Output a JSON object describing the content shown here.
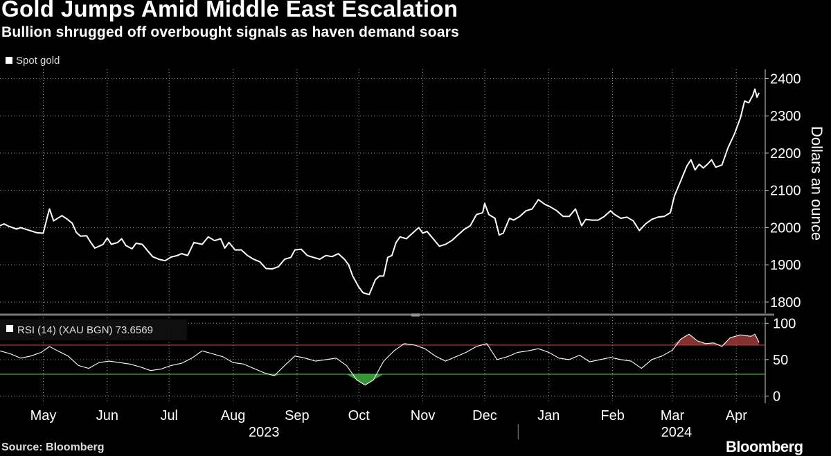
{
  "header": {
    "title": "Gold Jumps Amid Middle East Escalation",
    "subtitle": "Bullion shrugged off overbought signals as haven demand soars"
  },
  "footer": {
    "source": "Source: Bloomberg",
    "brand": "Bloomberg"
  },
  "colors": {
    "background": "#000000",
    "line": "#ffffff",
    "grid": "#9a9a9a",
    "overbought_line": "#c23b3b",
    "oversold_line": "#3fae3f",
    "overbought_fill": "#9b3a3a",
    "oversold_fill": "#3fae3f"
  },
  "chart_data": [
    {
      "type": "line",
      "title": "Gold Jumps Amid Middle East Escalation",
      "subtitle": "Bullion shrugged off overbought signals as haven demand soars",
      "legend": [
        "Spot gold"
      ],
      "legend_position": "top-left",
      "ylabel": "Dollars an ounce",
      "y_axis_side": "right",
      "yticks": [
        1800,
        1900,
        2000,
        2100,
        2200,
        2300,
        2400
      ],
      "ylim": [
        1770,
        2425
      ],
      "xlim": [
        "2023-04-10",
        "2024-04-15"
      ],
      "grid": "dotted",
      "series": [
        {
          "name": "Spot gold",
          "points": [
            [
              "2023-04-10",
              2005
            ],
            [
              "2023-04-12",
              2010
            ],
            [
              "2023-04-14",
              2004
            ],
            [
              "2023-04-18",
              1996
            ],
            [
              "2023-04-20",
              2000
            ],
            [
              "2023-04-25",
              1991
            ],
            [
              "2023-04-28",
              1986
            ],
            [
              "2023-05-01",
              1985
            ],
            [
              "2023-05-03",
              2030
            ],
            [
              "2023-05-04",
              2050
            ],
            [
              "2023-05-06",
              2018
            ],
            [
              "2023-05-10",
              2032
            ],
            [
              "2023-05-12",
              2025
            ],
            [
              "2023-05-15",
              2012
            ],
            [
              "2023-05-17",
              1987
            ],
            [
              "2023-05-19",
              1977
            ],
            [
              "2023-05-22",
              1978
            ],
            [
              "2023-05-24",
              1960
            ],
            [
              "2023-05-26",
              1945
            ],
            [
              "2023-05-30",
              1955
            ],
            [
              "2023-06-01",
              1972
            ],
            [
              "2023-06-03",
              1955
            ],
            [
              "2023-06-06",
              1960
            ],
            [
              "2023-06-08",
              1970
            ],
            [
              "2023-06-10",
              1952
            ],
            [
              "2023-06-13",
              1943
            ],
            [
              "2023-06-15",
              1958
            ],
            [
              "2023-06-18",
              1955
            ],
            [
              "2023-06-21",
              1935
            ],
            [
              "2023-06-23",
              1922
            ],
            [
              "2023-06-26",
              1915
            ],
            [
              "2023-06-29",
              1911
            ],
            [
              "2023-07-02",
              1921
            ],
            [
              "2023-07-05",
              1925
            ],
            [
              "2023-07-07",
              1930
            ],
            [
              "2023-07-10",
              1925
            ],
            [
              "2023-07-13",
              1960
            ],
            [
              "2023-07-17",
              1955
            ],
            [
              "2023-07-20",
              1975
            ],
            [
              "2023-07-23",
              1965
            ],
            [
              "2023-07-26",
              1970
            ],
            [
              "2023-07-28",
              1945
            ],
            [
              "2023-07-30",
              1960
            ],
            [
              "2023-08-02",
              1940
            ],
            [
              "2023-08-05",
              1940
            ],
            [
              "2023-08-08",
              1925
            ],
            [
              "2023-08-11",
              1915
            ],
            [
              "2023-08-14",
              1908
            ],
            [
              "2023-08-17",
              1890
            ],
            [
              "2023-08-20",
              1889
            ],
            [
              "2023-08-23",
              1895
            ],
            [
              "2023-08-26",
              1915
            ],
            [
              "2023-08-29",
              1920
            ],
            [
              "2023-08-31",
              1940
            ],
            [
              "2023-09-03",
              1942
            ],
            [
              "2023-09-06",
              1925
            ],
            [
              "2023-09-09",
              1920
            ],
            [
              "2023-09-12",
              1915
            ],
            [
              "2023-09-15",
              1925
            ],
            [
              "2023-09-18",
              1922
            ],
            [
              "2023-09-21",
              1930
            ],
            [
              "2023-09-24",
              1915
            ],
            [
              "2023-09-26",
              1900
            ],
            [
              "2023-09-28",
              1870
            ],
            [
              "2023-10-01",
              1840
            ],
            [
              "2023-10-03",
              1825
            ],
            [
              "2023-10-06",
              1820
            ],
            [
              "2023-10-09",
              1860
            ],
            [
              "2023-10-11",
              1870
            ],
            [
              "2023-10-13",
              1870
            ],
            [
              "2023-10-15",
              1920
            ],
            [
              "2023-10-17",
              1925
            ],
            [
              "2023-10-19",
              1960
            ],
            [
              "2023-10-21",
              1975
            ],
            [
              "2023-10-24",
              1970
            ],
            [
              "2023-10-27",
              1985
            ],
            [
              "2023-10-30",
              2000
            ],
            [
              "2023-11-01",
              1985
            ],
            [
              "2023-11-03",
              1990
            ],
            [
              "2023-11-06",
              1970
            ],
            [
              "2023-11-09",
              1950
            ],
            [
              "2023-11-12",
              1955
            ],
            [
              "2023-11-15",
              1965
            ],
            [
              "2023-11-18",
              1980
            ],
            [
              "2023-11-21",
              1995
            ],
            [
              "2023-11-24",
              2005
            ],
            [
              "2023-11-27",
              2035
            ],
            [
              "2023-11-30",
              2040
            ],
            [
              "2023-12-01",
              2065
            ],
            [
              "2023-12-03",
              2035
            ],
            [
              "2023-12-06",
              2025
            ],
            [
              "2023-12-08",
              1980
            ],
            [
              "2023-12-10",
              1985
            ],
            [
              "2023-12-13",
              2025
            ],
            [
              "2023-12-15",
              2020
            ],
            [
              "2023-12-18",
              2030
            ],
            [
              "2023-12-21",
              2045
            ],
            [
              "2023-12-24",
              2050
            ],
            [
              "2023-12-27",
              2075
            ],
            [
              "2023-12-30",
              2063
            ],
            [
              "2024-01-02",
              2055
            ],
            [
              "2024-01-05",
              2045
            ],
            [
              "2024-01-08",
              2030
            ],
            [
              "2024-01-11",
              2030
            ],
            [
              "2024-01-14",
              2050
            ],
            [
              "2024-01-17",
              2005
            ],
            [
              "2024-01-19",
              2022
            ],
            [
              "2024-01-22",
              2020
            ],
            [
              "2024-01-25",
              2020
            ],
            [
              "2024-01-28",
              2030
            ],
            [
              "2024-01-31",
              2045
            ],
            [
              "2024-02-02",
              2035
            ],
            [
              "2024-02-05",
              2025
            ],
            [
              "2024-02-08",
              2028
            ],
            [
              "2024-02-11",
              2018
            ],
            [
              "2024-02-14",
              1992
            ],
            [
              "2024-02-17",
              2010
            ],
            [
              "2024-02-20",
              2022
            ],
            [
              "2024-02-23",
              2028
            ],
            [
              "2024-02-26",
              2030
            ],
            [
              "2024-02-29",
              2040
            ],
            [
              "2024-03-02",
              2085
            ],
            [
              "2024-03-05",
              2125
            ],
            [
              "2024-03-08",
              2165
            ],
            [
              "2024-03-10",
              2182
            ],
            [
              "2024-03-12",
              2155
            ],
            [
              "2024-03-14",
              2170
            ],
            [
              "2024-03-16",
              2160
            ],
            [
              "2024-03-18",
              2170
            ],
            [
              "2024-03-20",
              2182
            ],
            [
              "2024-03-22",
              2162
            ],
            [
              "2024-03-25",
              2168
            ],
            [
              "2024-03-28",
              2215
            ],
            [
              "2024-03-31",
              2250
            ],
            [
              "2024-04-03",
              2295
            ],
            [
              "2024-04-05",
              2340
            ],
            [
              "2024-04-07",
              2335
            ],
            [
              "2024-04-09",
              2355
            ],
            [
              "2024-04-10",
              2372
            ],
            [
              "2024-04-11",
              2350
            ],
            [
              "2024-04-12",
              2362
            ]
          ]
        }
      ]
    },
    {
      "type": "line",
      "legend": [
        "RSI (14) (XAU BGN) 73.6569"
      ],
      "legend_position": "top-left",
      "yticks": [
        0,
        50,
        100
      ],
      "ylim": [
        -10,
        108
      ],
      "xlim": [
        "2023-04-10",
        "2024-04-15"
      ],
      "overbought": 70,
      "oversold": 30,
      "x_month_labels": [
        "May",
        "Jun",
        "Jul",
        "Aug",
        "Sep",
        "Oct",
        "Nov",
        "Dec",
        "Jan",
        "Feb",
        "Mar",
        "Apr"
      ],
      "x_month_dates": [
        "2023-05-01",
        "2023-06-01",
        "2023-07-01",
        "2023-08-01",
        "2023-09-01",
        "2023-10-01",
        "2023-11-01",
        "2023-12-01",
        "2024-01-01",
        "2024-02-01",
        "2024-03-01",
        "2024-04-01"
      ],
      "x_year_labels": [
        "2023",
        "2024"
      ],
      "x_year_dates": [
        "2023-08-16",
        "2024-03-03"
      ],
      "year_divider_date": "2024-01-01",
      "series": [
        {
          "name": "RSI (14) (XAU BGN)",
          "last_value": 73.6569,
          "points": [
            [
              "2023-04-10",
              62
            ],
            [
              "2023-04-15",
              58
            ],
            [
              "2023-04-20",
              52
            ],
            [
              "2023-04-25",
              55
            ],
            [
              "2023-04-30",
              60
            ],
            [
              "2023-05-04",
              68
            ],
            [
              "2023-05-08",
              62
            ],
            [
              "2023-05-13",
              55
            ],
            [
              "2023-05-18",
              42
            ],
            [
              "2023-05-23",
              38
            ],
            [
              "2023-05-28",
              46
            ],
            [
              "2023-06-02",
              48
            ],
            [
              "2023-06-07",
              46
            ],
            [
              "2023-06-12",
              44
            ],
            [
              "2023-06-17",
              40
            ],
            [
              "2023-06-22",
              35
            ],
            [
              "2023-06-27",
              37
            ],
            [
              "2023-07-02",
              42
            ],
            [
              "2023-07-07",
              45
            ],
            [
              "2023-07-12",
              52
            ],
            [
              "2023-07-17",
              62
            ],
            [
              "2023-07-22",
              58
            ],
            [
              "2023-07-27",
              54
            ],
            [
              "2023-08-01",
              46
            ],
            [
              "2023-08-06",
              44
            ],
            [
              "2023-08-11",
              38
            ],
            [
              "2023-08-16",
              32
            ],
            [
              "2023-08-21",
              28
            ],
            [
              "2023-08-26",
              42
            ],
            [
              "2023-08-31",
              55
            ],
            [
              "2023-09-05",
              52
            ],
            [
              "2023-09-10",
              48
            ],
            [
              "2023-09-15",
              50
            ],
            [
              "2023-09-20",
              52
            ],
            [
              "2023-09-25",
              42
            ],
            [
              "2023-09-30",
              22
            ],
            [
              "2023-10-04",
              15
            ],
            [
              "2023-10-08",
              22
            ],
            [
              "2023-10-13",
              48
            ],
            [
              "2023-10-18",
              62
            ],
            [
              "2023-10-23",
              72
            ],
            [
              "2023-10-28",
              70
            ],
            [
              "2023-11-02",
              65
            ],
            [
              "2023-11-07",
              55
            ],
            [
              "2023-11-12",
              48
            ],
            [
              "2023-11-17",
              54
            ],
            [
              "2023-11-22",
              60
            ],
            [
              "2023-11-27",
              68
            ],
            [
              "2023-12-02",
              72
            ],
            [
              "2023-12-07",
              50
            ],
            [
              "2023-12-12",
              54
            ],
            [
              "2023-12-17",
              60
            ],
            [
              "2023-12-22",
              62
            ],
            [
              "2023-12-27",
              65
            ],
            [
              "2024-01-01",
              60
            ],
            [
              "2024-01-06",
              52
            ],
            [
              "2024-01-11",
              50
            ],
            [
              "2024-01-16",
              56
            ],
            [
              "2024-01-21",
              47
            ],
            [
              "2024-01-26",
              50
            ],
            [
              "2024-01-31",
              53
            ],
            [
              "2024-02-05",
              50
            ],
            [
              "2024-02-10",
              48
            ],
            [
              "2024-02-15",
              38
            ],
            [
              "2024-02-20",
              50
            ],
            [
              "2024-02-25",
              55
            ],
            [
              "2024-03-01",
              63
            ],
            [
              "2024-03-05",
              78
            ],
            [
              "2024-03-09",
              85
            ],
            [
              "2024-03-13",
              76
            ],
            [
              "2024-03-17",
              72
            ],
            [
              "2024-03-21",
              73
            ],
            [
              "2024-03-25",
              68
            ],
            [
              "2024-03-29",
              80
            ],
            [
              "2024-04-03",
              84
            ],
            [
              "2024-04-08",
              82
            ],
            [
              "2024-04-10",
              85
            ],
            [
              "2024-04-12",
              73.6569
            ]
          ]
        }
      ]
    }
  ]
}
